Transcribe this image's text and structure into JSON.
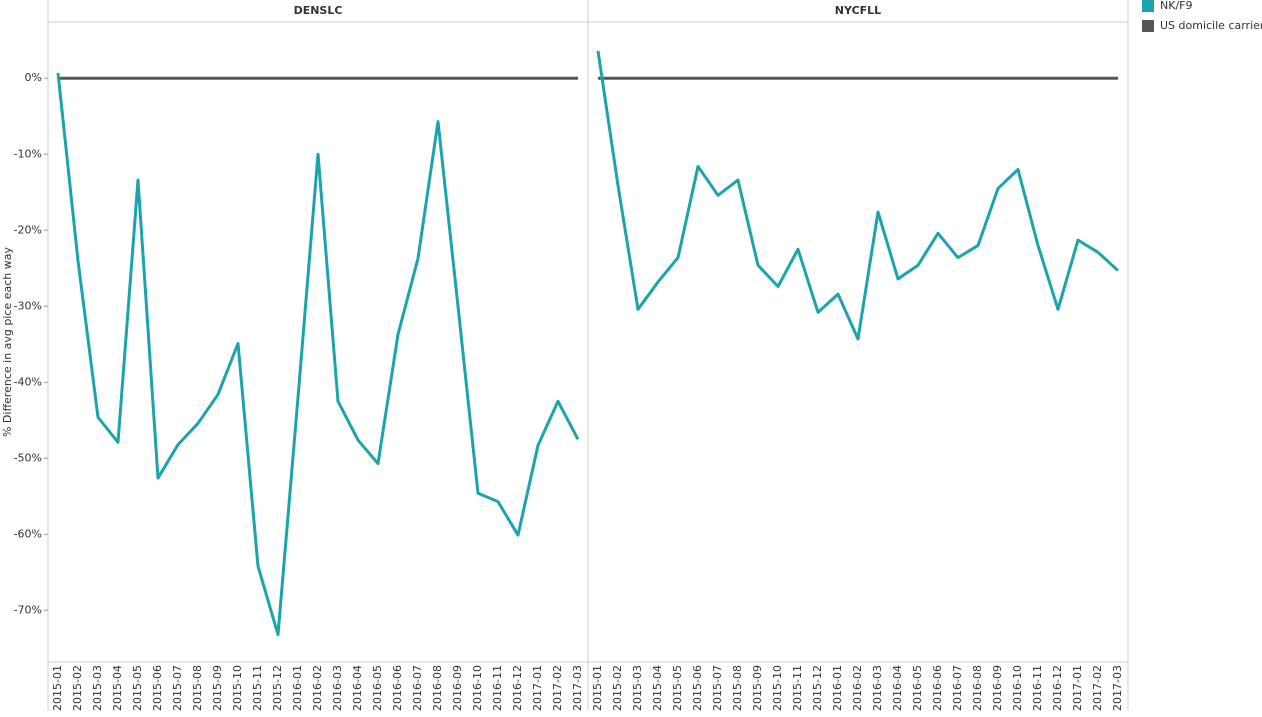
{
  "chart_data": {
    "type": "line",
    "ylabel": "% Difference in avg pice each way",
    "panels": [
      "DENSLC",
      "NYCFLL"
    ],
    "categories": [
      "2015-01",
      "2015-02",
      "2015-03",
      "2015-04",
      "2015-05",
      "2015-06",
      "2015-07",
      "2015-08",
      "2015-09",
      "2015-10",
      "2015-11",
      "2015-12",
      "2016-01",
      "2016-02",
      "2016-03",
      "2016-04",
      "2016-05",
      "2016-06",
      "2016-07",
      "2016-08",
      "2016-09",
      "2016-10",
      "2016-11",
      "2016-12",
      "2017-01",
      "2017-02",
      "2017-03"
    ],
    "ylim": [
      -76.8,
      7.4
    ],
    "yticks": [
      {
        "value": 0,
        "label": "0%"
      },
      {
        "value": -10,
        "label": "-10%"
      },
      {
        "value": -20,
        "label": "-20%"
      },
      {
        "value": -30,
        "label": "-30%"
      },
      {
        "value": -40,
        "label": "-40%"
      },
      {
        "value": -50,
        "label": "-50%"
      },
      {
        "value": -60,
        "label": "-60%"
      },
      {
        "value": -70,
        "label": "-70%"
      }
    ],
    "series": [
      {
        "name": "NK/F9",
        "color": "#1ba3ae",
        "values": [
          [
            0.7,
            -24,
            -44.6,
            -47.9,
            -13.4,
            -52.6,
            -48.2,
            -45.4,
            -41.6,
            -34.9,
            -64.2,
            -73.2,
            -42,
            -10,
            -42.5,
            -47.6,
            -50.7,
            -33.7,
            -23.7,
            -5.7,
            -30,
            -54.6,
            -55.7,
            -60.1,
            -48.3,
            -42.5,
            -47.5
          ],
          [
            3.6,
            -14.1,
            -30.4,
            -26.8,
            -23.6,
            -11.6,
            -15.4,
            -13.4,
            -24.6,
            -27.4,
            -22.5,
            -30.8,
            -28.4,
            -34.3,
            -17.6,
            -26.4,
            -24.6,
            -20.4,
            -23.6,
            -22,
            -14.5,
            -12,
            -22,
            -30.4,
            -21.3,
            -22.9,
            -25.3
          ]
        ]
      },
      {
        "name": "US domicile carriers",
        "color": "#555555",
        "values": [
          [
            0,
            0,
            0,
            0,
            0,
            0,
            0,
            0,
            0,
            0,
            0,
            0,
            0,
            0,
            0,
            0,
            0,
            0,
            0,
            0,
            0,
            0,
            0,
            0,
            0,
            0,
            0
          ],
          [
            0,
            0,
            0,
            0,
            0,
            0,
            0,
            0,
            0,
            0,
            0,
            0,
            0,
            0,
            0,
            0,
            0,
            0,
            0,
            0,
            0,
            0,
            0,
            0,
            0,
            0,
            0
          ]
        ]
      }
    ]
  }
}
